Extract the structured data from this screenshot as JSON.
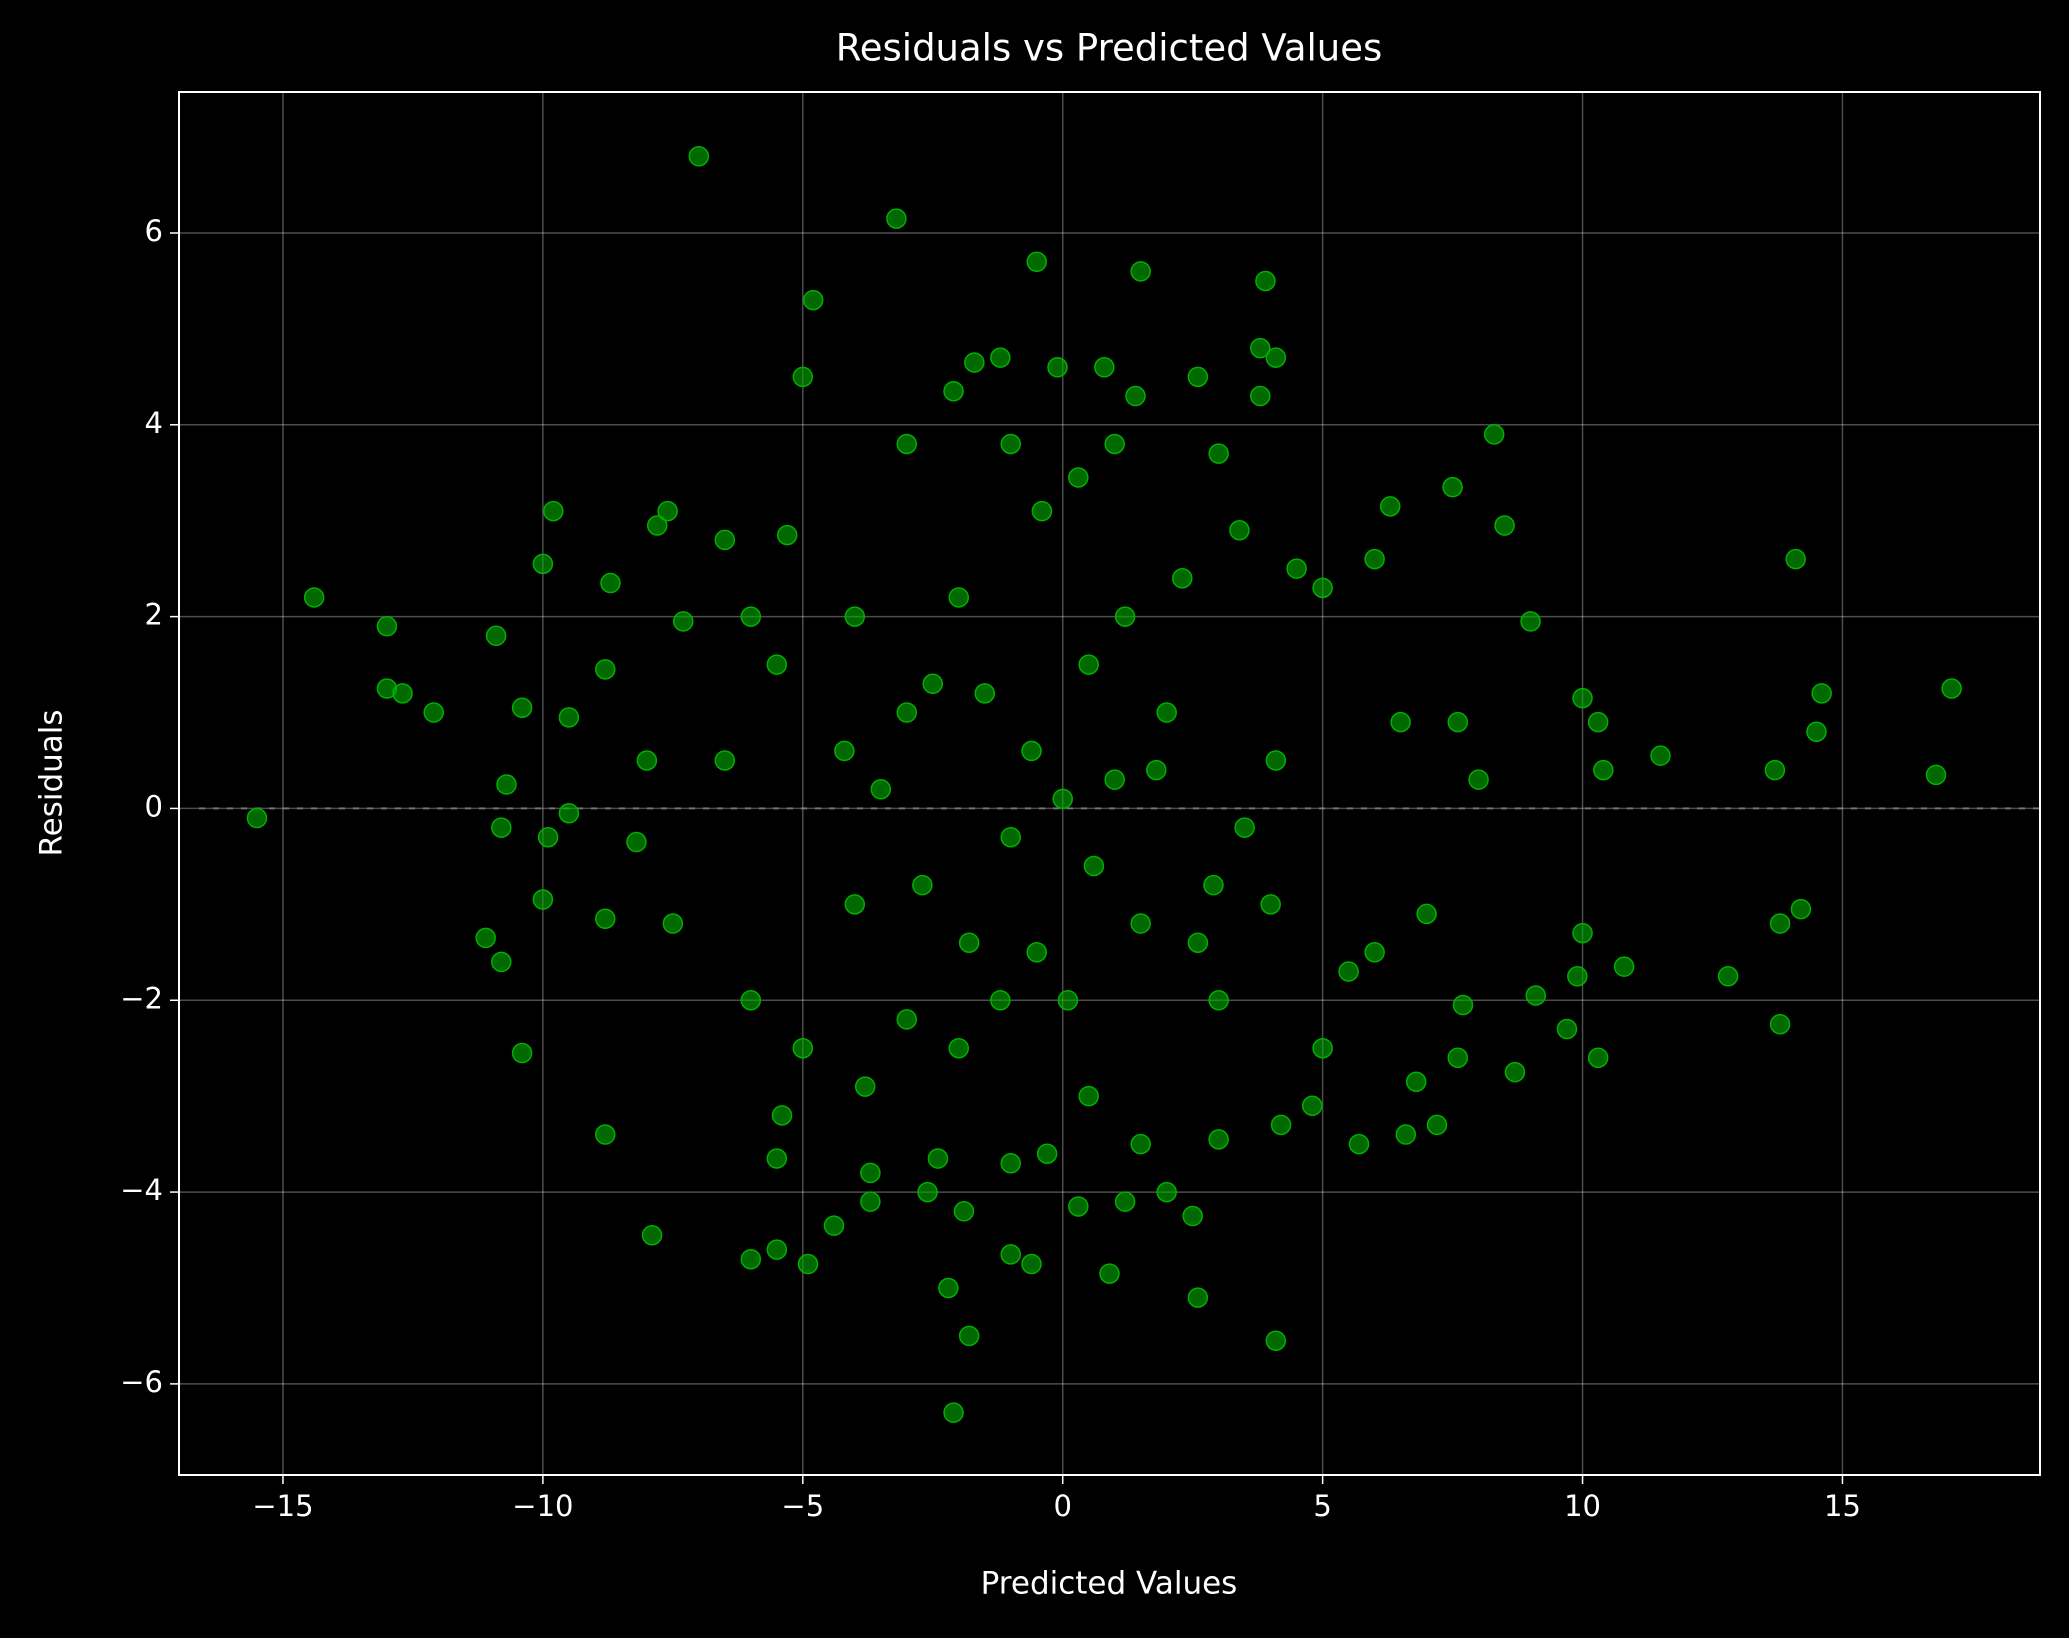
{
  "chart_data": {
    "type": "scatter",
    "title": "Residuals vs Predicted Values",
    "x_label": "Predicted Values",
    "y_label": "Residuals",
    "color": "#00b000",
    "opacity": 0.6,
    "grid": true,
    "hline": 0,
    "xlim": [
      -17.0,
      18.8
    ],
    "ylim": [
      -6.95,
      7.47
    ],
    "xticks": [
      {
        "value": -15,
        "label": "−15"
      },
      {
        "value": -10,
        "label": "−10"
      },
      {
        "value": -5,
        "label": "−5"
      },
      0,
      5,
      10,
      15
    ],
    "yticks": [
      {
        "value": -6,
        "label": "−6"
      },
      {
        "value": -4,
        "label": "−4"
      },
      {
        "value": -2,
        "label": "−2"
      },
      0,
      2,
      4,
      6
    ],
    "x": [
      -15.5,
      -14.4,
      -13,
      -13,
      -12.7,
      -12.1,
      -10.9,
      -10.7,
      -10.8,
      -11.1,
      -10.8,
      -10.4,
      -10.4,
      -9.8,
      -10,
      -9.9,
      -10,
      -9.5,
      -9.5,
      -8.8,
      -8.7,
      -8.8,
      -8.8,
      -7.9,
      -7.8,
      -7.6,
      -7.3,
      -7,
      -6.5,
      -5.3,
      -5,
      -4.8,
      -3.2,
      -0.5,
      1.5,
      3.9,
      4.1,
      3.8,
      3.8,
      -1.2,
      -1.7,
      -2.1,
      0.8,
      -0.1,
      2.6,
      1.4,
      8.3,
      8.5,
      7.5,
      6.3,
      9,
      10.3,
      10,
      10.4,
      11.5,
      13.7,
      14.1,
      14.6,
      14.5,
      16.8,
      17.1,
      13.8,
      14.2,
      13.8,
      12.8,
      10.8,
      10.3,
      10,
      9.9,
      9.7,
      9.1,
      8.7,
      7.7,
      7.6,
      7.2,
      6.8,
      6.6,
      5.7,
      4.2,
      4.1,
      2.6,
      2.5,
      0.9,
      0.3,
      -1.0,
      -0.6,
      -1.8,
      -2.2,
      -2.1,
      -1.9,
      -4.4,
      -4.9,
      -5.5,
      -6.0,
      -3.7,
      -3.7,
      -5.5,
      -5.4,
      -2.4,
      -2.6,
      2.0,
      1.2,
      1.5,
      3,
      4.8,
      0.5,
      -1,
      -0.3,
      0.1,
      -2,
      -3,
      3,
      4,
      -4,
      -3,
      2,
      1,
      -1,
      0.5,
      -0.5,
      -1.5,
      1.5,
      3,
      -3,
      -2,
      2.3,
      -4,
      4.5,
      5,
      6,
      -6,
      -6,
      6,
      5,
      -5,
      -3.5,
      3.5,
      0,
      -0.4,
      0.3,
      2.9,
      -2.7,
      1.8,
      -1.8,
      -4.2,
      4.1,
      -6.5,
      6.5,
      -7.5,
      7,
      -8,
      8,
      -8.2,
      7.6,
      -2.5,
      2.6,
      0.6,
      -0.6,
      1.2,
      -1.2,
      -3.8,
      3.4,
      -5.5,
      5.5,
      -1,
      1
    ],
    "values": [
      -0.1,
      2.2,
      1.9,
      1.25,
      1.2,
      1.0,
      1.8,
      0.25,
      -0.2,
      -1.35,
      -1.6,
      -2.55,
      1.05,
      3.1,
      2.55,
      -0.3,
      -0.95,
      -0.05,
      0.95,
      1.45,
      2.35,
      -3.4,
      -1.15,
      -4.45,
      2.95,
      3.1,
      1.95,
      6.8,
      2.8,
      2.85,
      4.5,
      5.3,
      6.15,
      5.7,
      5.6,
      5.5,
      4.7,
      4.8,
      4.3,
      4.7,
      4.65,
      4.35,
      4.6,
      4.6,
      4.5,
      4.3,
      3.9,
      2.95,
      3.35,
      3.15,
      1.95,
      0.9,
      1.15,
      0.4,
      0.55,
      0.4,
      2.6,
      1.2,
      0.8,
      0.35,
      1.25,
      -1.2,
      -1.05,
      -2.25,
      -1.75,
      -1.65,
      -2.6,
      -1.3,
      -1.75,
      -2.3,
      -1.95,
      -2.75,
      -2.05,
      -2.6,
      -3.3,
      -2.85,
      -3.4,
      -3.5,
      -3.3,
      -5.55,
      -5.1,
      -4.25,
      -4.85,
      -4.15,
      -4.65,
      -4.75,
      -5.5,
      -5.0,
      -6.3,
      -4.2,
      -4.35,
      -4.75,
      -4.6,
      -4.7,
      -4.1,
      -3.8,
      -3.65,
      -3.2,
      -3.65,
      -4.0,
      -4.0,
      -4.1,
      -3.5,
      -3.45,
      -3.1,
      -3.0,
      -3.7,
      -3.6,
      -2.0,
      -2.5,
      -2.2,
      -2,
      -1,
      -1,
      1,
      1,
      0.3,
      -0.3,
      1.5,
      -1.5,
      1.2,
      -1.2,
      3.7,
      3.8,
      2.2,
      2.4,
      2,
      2.5,
      2.3,
      2.6,
      2,
      -2,
      -1.5,
      -2.5,
      -2.5,
      0.2,
      -0.2,
      0.1,
      3.1,
      3.45,
      -0.8,
      -0.8,
      0.4,
      -1.4,
      0.6,
      0.5,
      0.5,
      0.9,
      -1.2,
      -1.1,
      0.5,
      0.3,
      -0.35,
      0.9,
      1.3,
      -1.4,
      -0.6,
      0.6,
      2.0,
      -2.0,
      -2.9,
      2.9,
      1.5,
      -1.7,
      3.8,
      3.8
    ]
  }
}
